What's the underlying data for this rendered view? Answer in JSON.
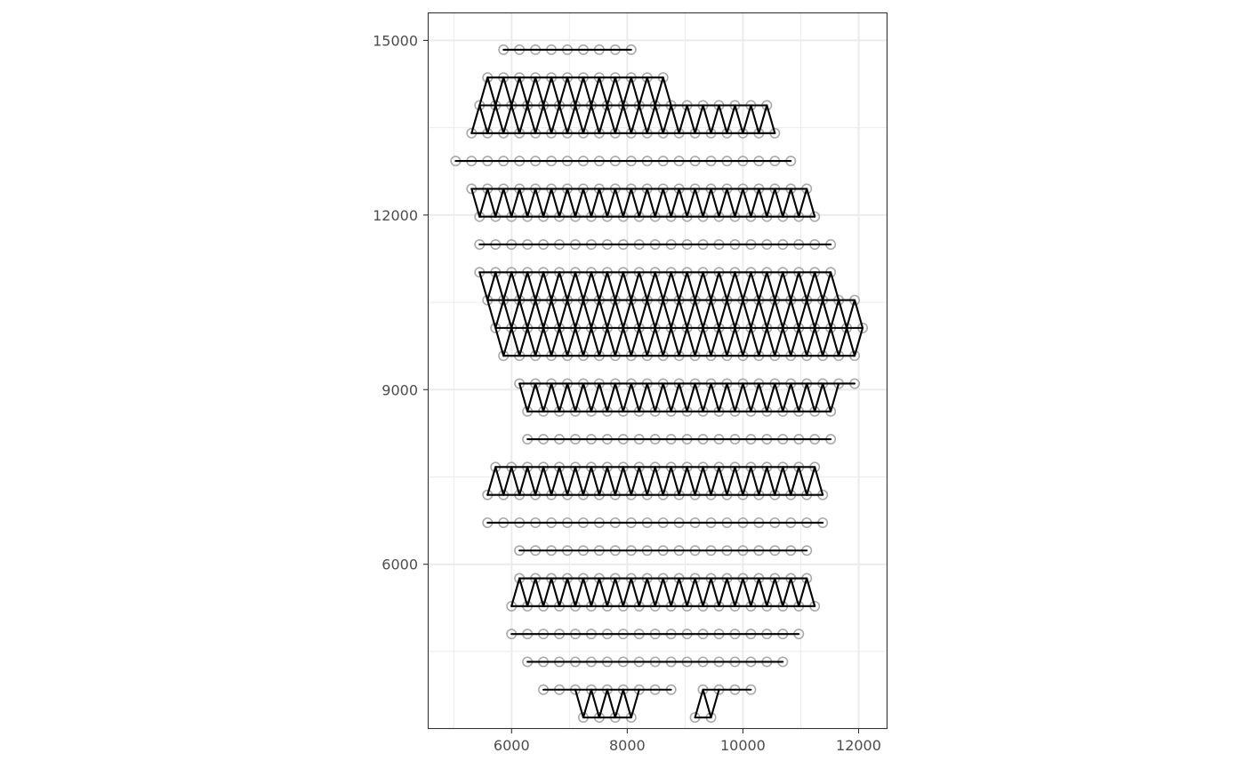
{
  "chart_data": {
    "type": "scatter",
    "subtype": "spot-grid-with-triangulation-mesh",
    "title": "",
    "xlabel": "",
    "ylabel": "",
    "xlim": [
      4550,
      12500
    ],
    "ylim": [
      3170,
      15480
    ],
    "x_ticks": [
      {
        "value": 6000,
        "label": "6000"
      },
      {
        "value": 8000,
        "label": "8000"
      },
      {
        "value": 10000,
        "label": "10000"
      },
      {
        "value": 12000,
        "label": "12000"
      }
    ],
    "y_ticks": [
      {
        "value": 6000,
        "label": "6000"
      },
      {
        "value": 9000,
        "label": "9000"
      },
      {
        "value": 12000,
        "label": "12000"
      },
      {
        "value": 15000,
        "label": "15000"
      }
    ],
    "x_minor_gridlines": [
      5000,
      7000,
      9000,
      11000
    ],
    "y_minor_gridlines": [
      4500,
      7500,
      10500,
      13500
    ],
    "grid": true,
    "legend": "none",
    "grid_spacing": {
      "dx": 276,
      "dy": 478
    },
    "row_extents": [
      {
        "y": 14840,
        "x_min": 5860,
        "x_max": 8068
      },
      {
        "y": 14362,
        "x_min": 5584,
        "x_max": 8758
      },
      {
        "y": 13884,
        "x_min": 5446,
        "x_max": 10414
      },
      {
        "y": 13406,
        "x_min": 5308,
        "x_max": 10552
      },
      {
        "y": 12928,
        "x_min": 5032,
        "x_max": 10828
      },
      {
        "y": 12450,
        "x_min": 5308,
        "x_max": 11104
      },
      {
        "y": 11972,
        "x_min": 5446,
        "x_max": 11380
      },
      {
        "y": 11494,
        "x_min": 5446,
        "x_max": 11518
      },
      {
        "y": 11016,
        "x_min": 5446,
        "x_max": 11656
      },
      {
        "y": 10538,
        "x_min": 5584,
        "x_max": 11932
      },
      {
        "y": 10060,
        "x_min": 5722,
        "x_max": 12070
      },
      {
        "y": 9582,
        "x_min": 5860,
        "x_max": 12070
      },
      {
        "y": 9104,
        "x_min": 6136,
        "x_max": 11932
      },
      {
        "y": 8626,
        "x_min": 6274,
        "x_max": 11656
      },
      {
        "y": 8148,
        "x_min": 6274,
        "x_max": 11518
      },
      {
        "y": 7670,
        "x_min": 5722,
        "x_max": 11380
      },
      {
        "y": 7192,
        "x_min": 5584,
        "x_max": 11380
      },
      {
        "y": 6714,
        "x_min": 5584,
        "x_max": 11380
      },
      {
        "y": 6236,
        "x_min": 6136,
        "x_max": 11242
      },
      {
        "y": 5758,
        "x_min": 6136,
        "x_max": 11242
      },
      {
        "y": 5280,
        "x_min": 5998,
        "x_max": 11242
      },
      {
        "y": 4802,
        "x_min": 5998,
        "x_max": 10966
      },
      {
        "y": 4324,
        "x_min": 6274,
        "x_max": 10690
      },
      {
        "y": 3846,
        "x_min": 6550,
        "x_max": 10138
      },
      {
        "y": 3368,
        "x_min": 7240,
        "x_max": 9448
      }
    ],
    "row_gaps": [
      {
        "y": 3846,
        "x_from": 8800,
        "x_to": 9100
      },
      {
        "y": 3368,
        "x_from": 8100,
        "x_to": 9100
      }
    ],
    "colors": {
      "spot_outline": "#aaaaaa",
      "mesh": "#000000",
      "grid_line": "#ebebeb",
      "panel_border": "#333333",
      "tick_label": "#4d4d4d"
    }
  }
}
